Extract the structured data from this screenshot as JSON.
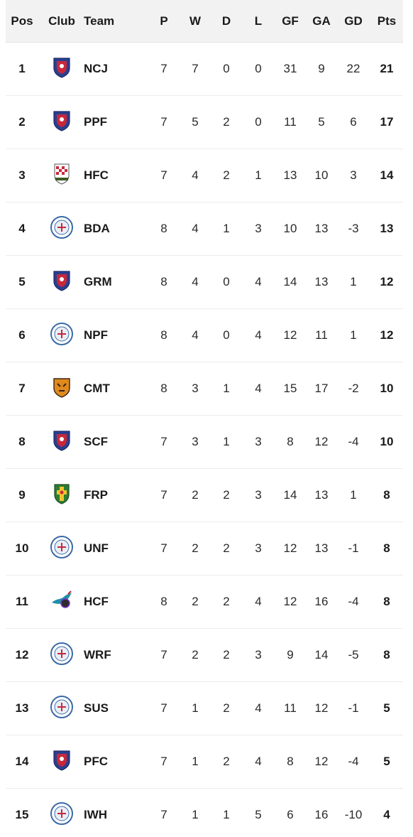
{
  "columns": {
    "pos": "Pos",
    "club": "Club",
    "team": "Team",
    "p": "P",
    "w": "W",
    "d": "D",
    "l": "L",
    "gf": "GF",
    "ga": "GA",
    "gd": "GD",
    "pts": "Pts"
  },
  "rows": [
    {
      "pos": "1",
      "team": "NCJ",
      "crest": "shield-crest-icon",
      "p": "7",
      "w": "7",
      "d": "0",
      "l": "0",
      "gf": "31",
      "ga": "9",
      "gd": "22",
      "pts": "21"
    },
    {
      "pos": "2",
      "team": "PPF",
      "crest": "shield-crest-icon",
      "p": "7",
      "w": "5",
      "d": "2",
      "l": "0",
      "gf": "11",
      "ga": "5",
      "gd": "6",
      "pts": "17"
    },
    {
      "pos": "3",
      "team": "HFC",
      "crest": "checkered-crest-icon",
      "p": "7",
      "w": "4",
      "d": "2",
      "l": "1",
      "gf": "13",
      "ga": "10",
      "gd": "3",
      "pts": "14"
    },
    {
      "pos": "4",
      "team": "BDA",
      "crest": "round-crest-icon",
      "p": "8",
      "w": "4",
      "d": "1",
      "l": "3",
      "gf": "10",
      "ga": "13",
      "gd": "-3",
      "pts": "13"
    },
    {
      "pos": "5",
      "team": "GRM",
      "crest": "shield-crest-icon",
      "p": "8",
      "w": "4",
      "d": "0",
      "l": "4",
      "gf": "14",
      "ga": "13",
      "gd": "1",
      "pts": "12"
    },
    {
      "pos": "6",
      "team": "NPF",
      "crest": "round-crest-icon",
      "p": "8",
      "w": "4",
      "d": "0",
      "l": "4",
      "gf": "12",
      "ga": "11",
      "gd": "1",
      "pts": "12"
    },
    {
      "pos": "7",
      "team": "CMT",
      "crest": "tiger-crest-icon",
      "p": "8",
      "w": "3",
      "d": "1",
      "l": "4",
      "gf": "15",
      "ga": "17",
      "gd": "-2",
      "pts": "10"
    },
    {
      "pos": "8",
      "team": "SCF",
      "crest": "shield-crest-icon",
      "p": "7",
      "w": "3",
      "d": "1",
      "l": "3",
      "gf": "8",
      "ga": "12",
      "gd": "-4",
      "pts": "10"
    },
    {
      "pos": "9",
      "team": "FRP",
      "crest": "cross-crest-icon",
      "p": "7",
      "w": "2",
      "d": "2",
      "l": "3",
      "gf": "14",
      "ga": "13",
      "gd": "1",
      "pts": "8"
    },
    {
      "pos": "10",
      "team": "UNF",
      "crest": "round-crest-icon",
      "p": "7",
      "w": "2",
      "d": "2",
      "l": "3",
      "gf": "12",
      "ga": "13",
      "gd": "-1",
      "pts": "8"
    },
    {
      "pos": "11",
      "team": "HCF",
      "crest": "bird-crest-icon",
      "p": "8",
      "w": "2",
      "d": "2",
      "l": "4",
      "gf": "12",
      "ga": "16",
      "gd": "-4",
      "pts": "8"
    },
    {
      "pos": "12",
      "team": "WRF",
      "crest": "round-crest-icon",
      "p": "7",
      "w": "2",
      "d": "2",
      "l": "3",
      "gf": "9",
      "ga": "14",
      "gd": "-5",
      "pts": "8"
    },
    {
      "pos": "13",
      "team": "SUS",
      "crest": "round-crest-icon",
      "p": "7",
      "w": "1",
      "d": "2",
      "l": "4",
      "gf": "11",
      "ga": "12",
      "gd": "-1",
      "pts": "5"
    },
    {
      "pos": "14",
      "team": "PFC",
      "crest": "shield-crest-icon",
      "p": "7",
      "w": "1",
      "d": "2",
      "l": "4",
      "gf": "8",
      "ga": "12",
      "gd": "-4",
      "pts": "5"
    },
    {
      "pos": "15",
      "team": "IWH",
      "crest": "round-crest-icon",
      "p": "7",
      "w": "1",
      "d": "1",
      "l": "5",
      "gf": "6",
      "ga": "16",
      "gd": "-10",
      "pts": "4"
    }
  ],
  "colors": {
    "header_bg": "#f2f2f2",
    "divider": "#ececec",
    "text": "#1a1a1a"
  }
}
